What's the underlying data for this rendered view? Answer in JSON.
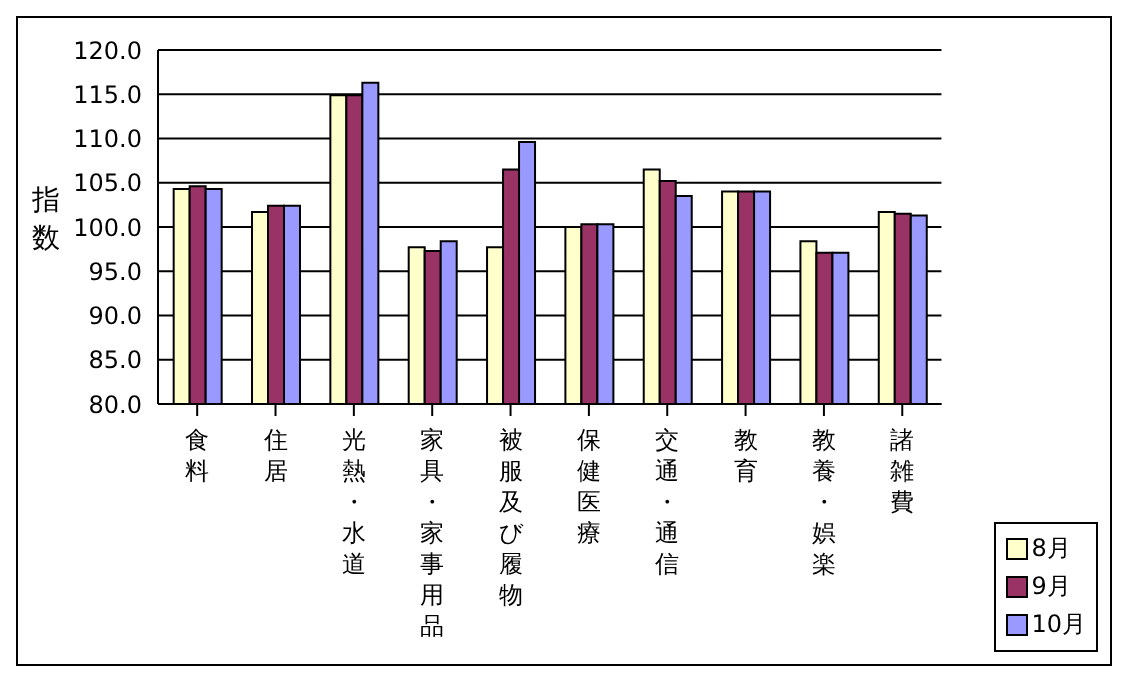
{
  "chart_data": {
    "type": "bar",
    "ylabel": "指数",
    "categories": [
      "食料",
      "住居",
      "光熱・水道",
      "家具・家事用品",
      "被服及び履物",
      "保健医療",
      "交通・通信",
      "教育",
      "教養・娯楽",
      "諸雑費"
    ],
    "series": [
      {
        "name": "8月",
        "color": "#ffffcc",
        "values": [
          104.3,
          101.7,
          114.9,
          97.7,
          97.7,
          100.0,
          106.5,
          104.0,
          98.4,
          101.7
        ]
      },
      {
        "name": "9月",
        "color": "#993366",
        "values": [
          104.6,
          102.4,
          114.9,
          97.3,
          106.5,
          100.3,
          105.2,
          104.0,
          97.1,
          101.5
        ]
      },
      {
        "name": "10月",
        "color": "#9999ff",
        "values": [
          104.3,
          102.4,
          116.3,
          98.4,
          109.6,
          100.3,
          103.5,
          104.0,
          97.1,
          101.3
        ]
      }
    ],
    "ylim": [
      80,
      120
    ],
    "yticks": [
      {
        "value": 80,
        "label": "80.0"
      },
      {
        "value": 85,
        "label": "85.0"
      },
      {
        "value": 90,
        "label": "90.0"
      },
      {
        "value": 95,
        "label": "95.0"
      },
      {
        "value": 100,
        "label": "100.0"
      },
      {
        "value": 105,
        "label": "105.0"
      },
      {
        "value": 110,
        "label": "110.0"
      },
      {
        "value": 115,
        "label": "115.0"
      },
      {
        "value": 120,
        "label": "120.0"
      }
    ],
    "grid": "y",
    "legend": "bottom right"
  }
}
